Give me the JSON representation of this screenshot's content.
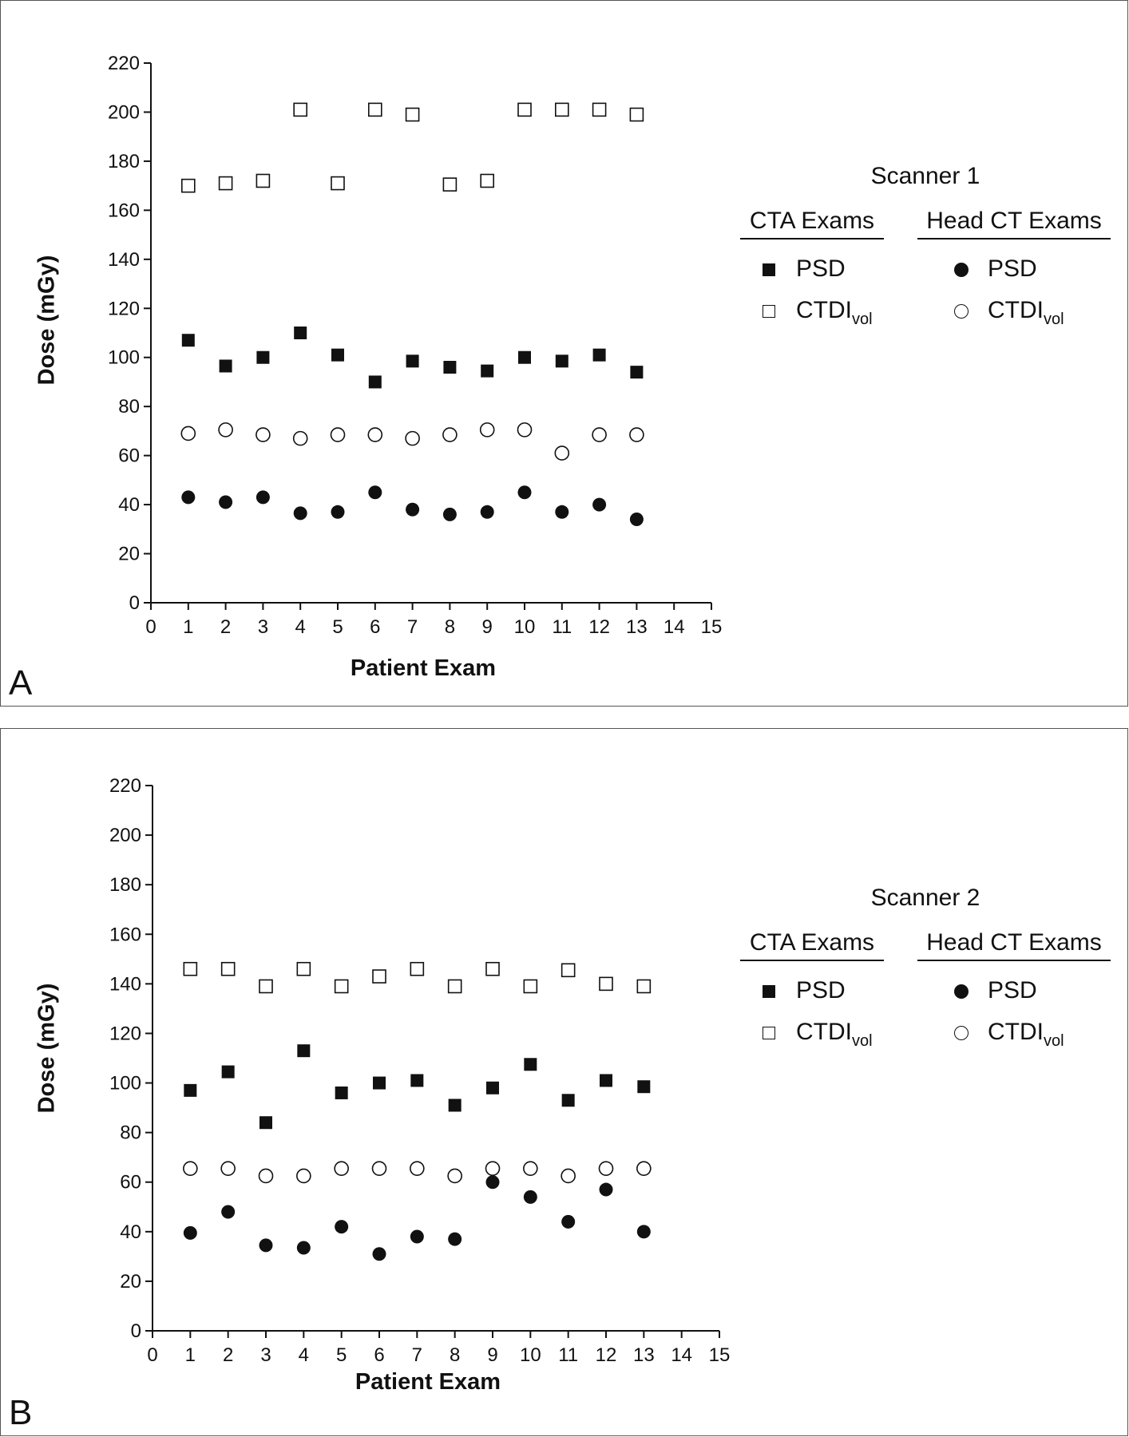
{
  "chart_data": [
    {
      "type": "scatter",
      "panel_label": "A",
      "xlabel": "Patient Exam",
      "ylabel": "Dose (mGy)",
      "xlim": [
        0,
        15
      ],
      "ylim": [
        0,
        220
      ],
      "xticks": [
        0,
        1,
        2,
        3,
        4,
        5,
        6,
        7,
        8,
        9,
        10,
        11,
        12,
        13,
        14,
        15
      ],
      "yticks": [
        0,
        20,
        40,
        60,
        80,
        100,
        120,
        140,
        160,
        180,
        200,
        220
      ],
      "x": [
        1,
        2,
        3,
        4,
        5,
        6,
        7,
        8,
        9,
        10,
        11,
        12,
        13
      ],
      "legend": {
        "title": "Scanner 1",
        "groups": [
          {
            "heading": "CTA Exams",
            "items": [
              {
                "marker": "filled-square",
                "label": "PSD"
              },
              {
                "marker": "open-square",
                "label": "CTDI",
                "label_sub": "vol"
              }
            ]
          },
          {
            "heading": "Head CT Exams",
            "items": [
              {
                "marker": "filled-circle",
                "label": "PSD"
              },
              {
                "marker": "open-circle",
                "label": "CTDI",
                "label_sub": "vol"
              }
            ]
          }
        ]
      },
      "series": [
        {
          "group": "CTA Exams",
          "measure": "PSD",
          "marker": "filled-square",
          "values": [
            107,
            96.5,
            100,
            110,
            101,
            90,
            98.5,
            96,
            94.5,
            100,
            98.5,
            101,
            94
          ]
        },
        {
          "group": "CTA Exams",
          "measure": "CTDIvol",
          "marker": "open-square",
          "values": [
            170,
            171,
            172,
            201,
            171,
            201,
            199,
            170.5,
            172,
            201,
            201,
            201,
            199
          ]
        },
        {
          "group": "Head CT Exams",
          "measure": "PSD",
          "marker": "filled-circle",
          "values": [
            43,
            41,
            43,
            36.5,
            37,
            45,
            38,
            36,
            37,
            45,
            37,
            40,
            34
          ]
        },
        {
          "group": "Head CT Exams",
          "measure": "CTDIvol",
          "marker": "open-circle",
          "values": [
            69,
            70.5,
            68.5,
            67,
            68.5,
            68.5,
            67,
            68.5,
            70.5,
            70.5,
            61,
            68.5,
            68.5
          ]
        }
      ]
    },
    {
      "type": "scatter",
      "panel_label": "B",
      "xlabel": "Patient Exam",
      "ylabel": "Dose (mGy)",
      "xlim": [
        0,
        15
      ],
      "ylim": [
        0,
        220
      ],
      "xticks": [
        0,
        1,
        2,
        3,
        4,
        5,
        6,
        7,
        8,
        9,
        10,
        11,
        12,
        13,
        14,
        15
      ],
      "yticks": [
        0,
        20,
        40,
        60,
        80,
        100,
        120,
        140,
        160,
        180,
        200,
        220
      ],
      "x": [
        1,
        2,
        3,
        4,
        5,
        6,
        7,
        8,
        9,
        10,
        11,
        12,
        13
      ],
      "legend": {
        "title": "Scanner 2",
        "groups": [
          {
            "heading": "CTA Exams",
            "items": [
              {
                "marker": "filled-square",
                "label": "PSD"
              },
              {
                "marker": "open-square",
                "label": "CTDI",
                "label_sub": "vol"
              }
            ]
          },
          {
            "heading": "Head CT Exams",
            "items": [
              {
                "marker": "filled-circle",
                "label": "PSD"
              },
              {
                "marker": "open-circle",
                "label": "CTDI",
                "label_sub": "vol"
              }
            ]
          }
        ]
      },
      "series": [
        {
          "group": "CTA Exams",
          "measure": "PSD",
          "marker": "filled-square",
          "values": [
            97,
            104.5,
            84,
            113,
            96,
            100,
            101,
            91,
            98,
            107.5,
            93,
            101,
            98.5
          ]
        },
        {
          "group": "CTA Exams",
          "measure": "CTDIvol",
          "marker": "open-square",
          "values": [
            146,
            146,
            139,
            146,
            139,
            143,
            146,
            139,
            146,
            139,
            145.5,
            140,
            139
          ]
        },
        {
          "group": "Head CT Exams",
          "measure": "PSD",
          "marker": "filled-circle",
          "values": [
            39.5,
            48,
            34.5,
            33.5,
            42,
            31,
            38,
            37,
            60,
            54,
            44,
            57,
            40
          ]
        },
        {
          "group": "Head CT Exams",
          "measure": "CTDIvol",
          "marker": "open-circle",
          "values": [
            65.5,
            65.5,
            62.5,
            62.5,
            65.5,
            65.5,
            65.5,
            62.5,
            65.5,
            65.5,
            62.5,
            65.5,
            65.5
          ]
        }
      ]
    }
  ]
}
